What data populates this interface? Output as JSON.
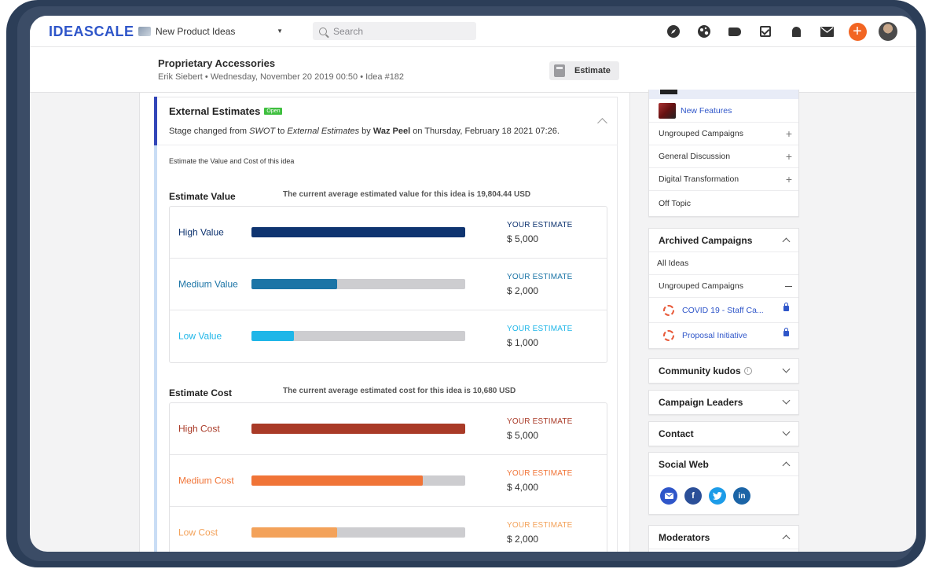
{
  "colors": {
    "brand": "#2f56c9",
    "accent_orange": "#f26522",
    "high_value": "#0f3470",
    "medium_value": "#1b74a6",
    "low_value": "#1fb6e8",
    "high_cost": "#a93a27",
    "medium_cost": "#f07437",
    "low_cost": "#f3a25a",
    "open_badge": "#3fbf3f"
  },
  "nav": {
    "logo": "IDEASCALE",
    "community": "New Product Ideas",
    "search_placeholder": "Search",
    "icons": [
      "compass-icon",
      "globe-icon",
      "tag-icon",
      "checkbox-icon",
      "bell-icon",
      "mail-icon",
      "add-icon",
      "avatar"
    ]
  },
  "idea": {
    "title": "Proprietary Accessories",
    "meta": "Erik Siebert • Wednesday, November 20 2019 00:50 • Idea #182",
    "estimate_button": "Estimate"
  },
  "stage": {
    "title": "External Estimates",
    "badge": "Open",
    "desc_prefix": "Stage changed from ",
    "from_stage": "SWOT",
    "desc_to": " to ",
    "to_stage": "External Estimates",
    "desc_by": " by ",
    "author": "Waz Peel",
    "desc_date": " on Thursday, February 18 2021 07:26.",
    "helper": "Estimate the Value and Cost of this idea"
  },
  "value": {
    "label": "Estimate Value",
    "average": "The current average estimated value for this idea is 19,804.44 USD",
    "rows": [
      {
        "label": "High Value",
        "your_estimate": "YOUR ESTIMATE",
        "amount": "$ 5,000",
        "fill": 1.0
      },
      {
        "label": "Medium Value",
        "your_estimate": "YOUR ESTIMATE",
        "amount": "$ 2,000",
        "fill": 0.4
      },
      {
        "label": "Low Value",
        "your_estimate": "YOUR ESTIMATE",
        "amount": "$ 1,000",
        "fill": 0.2
      }
    ]
  },
  "cost": {
    "label": "Estimate Cost",
    "average": "The current average estimated cost for this idea is 10,680 USD",
    "rows": [
      {
        "label": "High Cost",
        "your_estimate": "YOUR ESTIMATE",
        "amount": "$ 5,000",
        "fill": 1.0
      },
      {
        "label": "Medium Cost",
        "your_estimate": "YOUR ESTIMATE",
        "amount": "$ 4,000",
        "fill": 0.8
      },
      {
        "label": "Low Cost",
        "your_estimate": "YOUR ESTIMATE",
        "amount": "$ 2,000",
        "fill": 0.4
      }
    ]
  },
  "sidebar": {
    "campaigns": [
      {
        "label": "New Features"
      },
      {
        "label": "Ungrouped Campaigns"
      },
      {
        "label": "General Discussion"
      },
      {
        "label": "Digital Transformation"
      },
      {
        "label": "Off Topic"
      }
    ],
    "archived": {
      "title": "Archived Campaigns",
      "items": [
        "All Ideas",
        "Ungrouped Campaigns",
        "COVID 19 - Staff Ca...",
        "Proposal Initiative"
      ]
    },
    "community_kudos": "Community kudos",
    "campaign_leaders": "Campaign Leaders",
    "contact": "Contact",
    "social_web": "Social Web",
    "social_icons": [
      "email-icon",
      "facebook-icon",
      "twitter-icon",
      "linkedin-icon"
    ],
    "moderators": "Moderators"
  }
}
